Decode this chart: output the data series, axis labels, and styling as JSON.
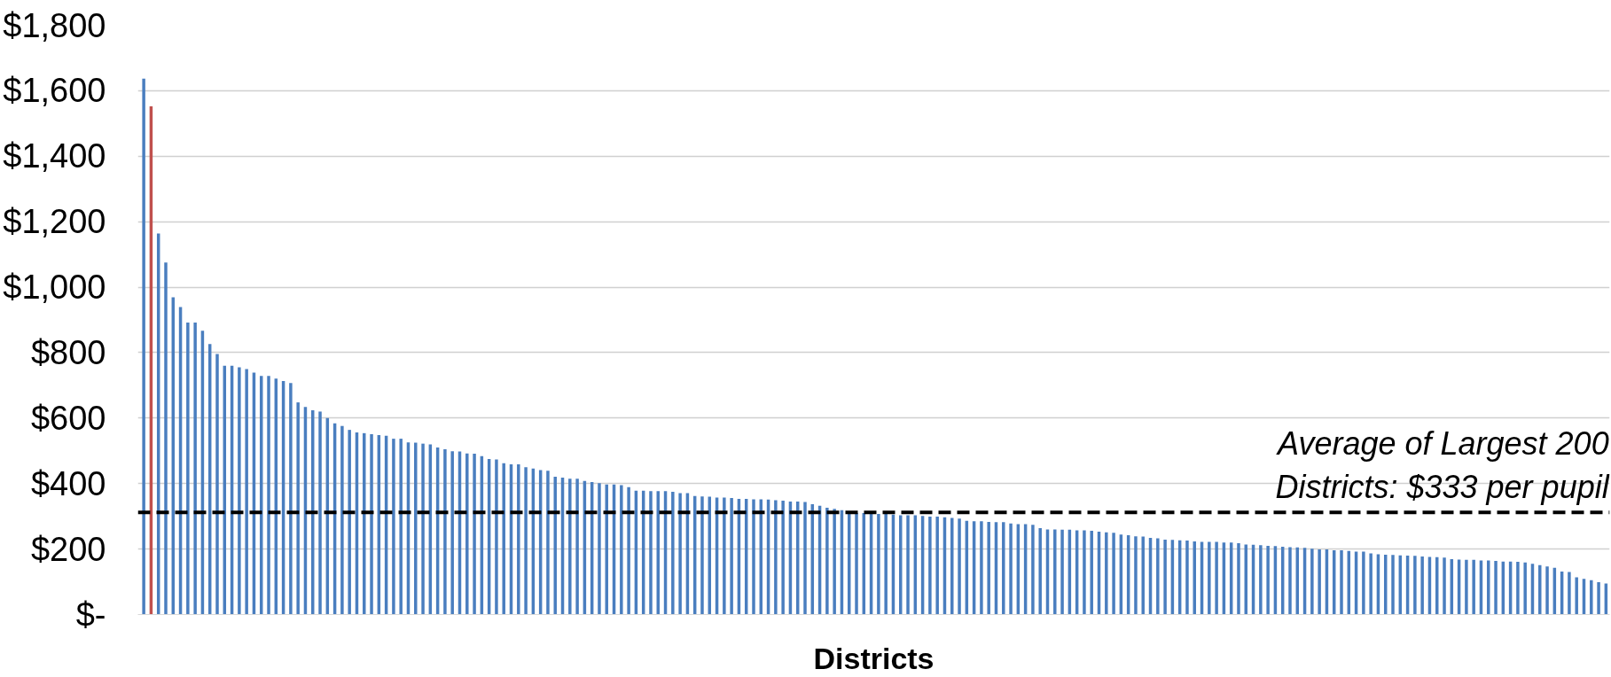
{
  "chart_data": {
    "type": "bar",
    "xlabel": "Districts",
    "categories": [
      null,
      null,
      null,
      null,
      null,
      null,
      null,
      null,
      null,
      null,
      null,
      null,
      null,
      null,
      null,
      null,
      null,
      null,
      null,
      null,
      null,
      null,
      null,
      null,
      null,
      null,
      null,
      null,
      null,
      null,
      null,
      null,
      null,
      null,
      null,
      null,
      null,
      null,
      null,
      null,
      null,
      null,
      null,
      null,
      null,
      null,
      null,
      null,
      null,
      null,
      null,
      null,
      null,
      null,
      null,
      null,
      null,
      null,
      null,
      null,
      null,
      null,
      null,
      null,
      null,
      null,
      null,
      null,
      null,
      null,
      null,
      null,
      null,
      null,
      null,
      null,
      null,
      null,
      null,
      null,
      null,
      null,
      null,
      null,
      null,
      null,
      null,
      null,
      null,
      null,
      null,
      null,
      null,
      null,
      null,
      null,
      null,
      null,
      null,
      null,
      null,
      null,
      null,
      null,
      null,
      null,
      null,
      null,
      null,
      null,
      null,
      null,
      null,
      null,
      null,
      null,
      null,
      null,
      null,
      null,
      null,
      null,
      null,
      null,
      null,
      null,
      null,
      null,
      null,
      null,
      null,
      null,
      null,
      null,
      null,
      null,
      null,
      null,
      null,
      null,
      null,
      null,
      null,
      null,
      null,
      null,
      null,
      null,
      null,
      null,
      null,
      null,
      null,
      null,
      null,
      null,
      null,
      null,
      null,
      null,
      null,
      null,
      null,
      null,
      null,
      null,
      null,
      null,
      null,
      null,
      null,
      null,
      null,
      null,
      null,
      null,
      null,
      null,
      null,
      null,
      null,
      null,
      null,
      null,
      null,
      null,
      null,
      null,
      null,
      null,
      null,
      null,
      null,
      null,
      null,
      null,
      null,
      null,
      null,
      null
    ],
    "values": [
      1637,
      1552,
      1164,
      1075,
      969,
      939,
      892,
      892,
      867,
      826,
      796,
      760,
      760,
      755,
      750,
      739,
      729,
      729,
      721,
      713,
      707,
      648,
      634,
      624,
      620,
      600,
      584,
      576,
      564,
      556,
      554,
      551,
      548,
      546,
      537,
      537,
      526,
      525,
      522,
      520,
      510,
      505,
      499,
      498,
      492,
      491,
      484,
      475,
      474,
      462,
      459,
      459,
      450,
      446,
      441,
      439,
      421,
      418,
      415,
      415,
      408,
      405,
      401,
      397,
      397,
      395,
      389,
      378,
      378,
      377,
      377,
      377,
      375,
      371,
      371,
      362,
      361,
      360,
      357,
      357,
      356,
      353,
      353,
      352,
      352,
      351,
      349,
      348,
      345,
      345,
      344,
      337,
      332,
      326,
      323,
      319,
      313,
      310,
      310,
      307,
      307,
      307,
      305,
      303,
      303,
      303,
      301,
      299,
      299,
      297,
      295,
      293,
      286,
      285,
      285,
      283,
      282,
      282,
      278,
      276,
      276,
      274,
      264,
      260,
      260,
      259,
      259,
      257,
      257,
      256,
      253,
      251,
      250,
      244,
      242,
      239,
      238,
      234,
      233,
      229,
      228,
      227,
      226,
      223,
      222,
      222,
      222,
      220,
      220,
      218,
      214,
      213,
      212,
      210,
      209,
      207,
      206,
      205,
      204,
      201,
      199,
      199,
      196,
      196,
      194,
      192,
      192,
      187,
      184,
      183,
      182,
      181,
      180,
      179,
      177,
      176,
      175,
      174,
      169,
      168,
      167,
      167,
      165,
      165,
      164,
      162,
      162,
      161,
      159,
      155,
      151,
      147,
      143,
      131,
      130,
      114,
      109,
      105,
      99,
      95
    ],
    "colors": [
      "#4a7ebf",
      "#c0504d",
      "#4a7ebf",
      "#4a7ebf",
      "#4a7ebf",
      "#4a7ebf",
      "#4a7ebf",
      "#4a7ebf",
      "#4a7ebf",
      "#4a7ebf",
      "#4a7ebf",
      "#4a7ebf",
      "#4a7ebf",
      "#4a7ebf",
      "#4a7ebf",
      "#4a7ebf",
      "#4a7ebf",
      "#4a7ebf",
      "#4a7ebf",
      "#4a7ebf",
      "#4a7ebf",
      "#4a7ebf",
      "#4a7ebf",
      "#4a7ebf",
      "#4a7ebf",
      "#4a7ebf",
      "#4a7ebf",
      "#4a7ebf",
      "#4a7ebf",
      "#4a7ebf",
      "#4a7ebf",
      "#4a7ebf",
      "#4a7ebf",
      "#4a7ebf",
      "#4a7ebf",
      "#4a7ebf",
      "#4a7ebf",
      "#4a7ebf",
      "#4a7ebf",
      "#4a7ebf",
      "#4a7ebf",
      "#4a7ebf",
      "#4a7ebf",
      "#4a7ebf",
      "#4a7ebf",
      "#4a7ebf",
      "#4a7ebf",
      "#4a7ebf",
      "#4a7ebf",
      "#4a7ebf",
      "#4a7ebf",
      "#4a7ebf",
      "#4a7ebf",
      "#4a7ebf",
      "#4a7ebf",
      "#4a7ebf",
      "#4a7ebf",
      "#4a7ebf",
      "#4a7ebf",
      "#4a7ebf",
      "#4a7ebf",
      "#4a7ebf",
      "#4a7ebf",
      "#4a7ebf",
      "#4a7ebf",
      "#4a7ebf",
      "#4a7ebf",
      "#4a7ebf",
      "#4a7ebf",
      "#4a7ebf",
      "#4a7ebf",
      "#4a7ebf",
      "#4a7ebf",
      "#4a7ebf",
      "#4a7ebf",
      "#4a7ebf",
      "#4a7ebf",
      "#4a7ebf",
      "#4a7ebf",
      "#4a7ebf",
      "#4a7ebf",
      "#4a7ebf",
      "#4a7ebf",
      "#4a7ebf",
      "#4a7ebf",
      "#4a7ebf",
      "#4a7ebf",
      "#4a7ebf",
      "#4a7ebf",
      "#4a7ebf",
      "#4a7ebf",
      "#4a7ebf",
      "#4a7ebf",
      "#4a7ebf",
      "#4a7ebf",
      "#4a7ebf",
      "#4a7ebf",
      "#4a7ebf",
      "#4a7ebf",
      "#4a7ebf",
      "#4a7ebf",
      "#4a7ebf",
      "#4a7ebf",
      "#4a7ebf",
      "#4a7ebf",
      "#4a7ebf",
      "#4a7ebf",
      "#4a7ebf",
      "#4a7ebf",
      "#4a7ebf",
      "#4a7ebf",
      "#4a7ebf",
      "#4a7ebf",
      "#4a7ebf",
      "#4a7ebf",
      "#4a7ebf",
      "#4a7ebf",
      "#4a7ebf",
      "#4a7ebf",
      "#4a7ebf",
      "#4a7ebf",
      "#4a7ebf",
      "#4a7ebf",
      "#4a7ebf",
      "#4a7ebf",
      "#4a7ebf",
      "#4a7ebf",
      "#4a7ebf",
      "#4a7ebf",
      "#4a7ebf",
      "#4a7ebf",
      "#4a7ebf",
      "#4a7ebf",
      "#4a7ebf",
      "#4a7ebf",
      "#4a7ebf",
      "#4a7ebf",
      "#4a7ebf",
      "#4a7ebf",
      "#4a7ebf",
      "#4a7ebf",
      "#4a7ebf",
      "#4a7ebf",
      "#4a7ebf",
      "#4a7ebf",
      "#4a7ebf",
      "#4a7ebf",
      "#4a7ebf",
      "#4a7ebf",
      "#4a7ebf",
      "#4a7ebf",
      "#4a7ebf",
      "#4a7ebf",
      "#4a7ebf",
      "#4a7ebf",
      "#4a7ebf",
      "#4a7ebf",
      "#4a7ebf",
      "#4a7ebf",
      "#4a7ebf",
      "#4a7ebf",
      "#4a7ebf",
      "#4a7ebf",
      "#4a7ebf",
      "#4a7ebf",
      "#4a7ebf",
      "#4a7ebf",
      "#4a7ebf",
      "#4a7ebf",
      "#4a7ebf",
      "#4a7ebf",
      "#4a7ebf",
      "#4a7ebf",
      "#4a7ebf",
      "#4a7ebf",
      "#4a7ebf",
      "#4a7ebf",
      "#4a7ebf",
      "#4a7ebf",
      "#4a7ebf",
      "#4a7ebf",
      "#4a7ebf",
      "#4a7ebf",
      "#4a7ebf",
      "#4a7ebf",
      "#4a7ebf",
      "#4a7ebf",
      "#4a7ebf",
      "#4a7ebf",
      "#4a7ebf",
      "#4a7ebf",
      "#4a7ebf",
      "#4a7ebf",
      "#4a7ebf",
      "#4a7ebf",
      "#4a7ebf",
      "#4a7ebf",
      "#4a7ebf",
      "#4a7ebf",
      "#4a7ebf"
    ],
    "ylim": [
      0,
      1800
    ],
    "yticks": [
      {
        "value": 0,
        "label": "$-"
      },
      {
        "value": 200,
        "label": "$200"
      },
      {
        "value": 400,
        "label": "$400"
      },
      {
        "value": 600,
        "label": "$600"
      },
      {
        "value": 800,
        "label": "$800"
      },
      {
        "value": 1000,
        "label": "$1,000"
      },
      {
        "value": 1200,
        "label": "$1,200"
      },
      {
        "value": 1400,
        "label": "$1,400"
      },
      {
        "value": 1600,
        "label": "$1,600"
      },
      {
        "value": 1800,
        "label": "$1,800"
      }
    ],
    "grid": "y",
    "annotations": [
      "Average of Largest 200\nDistricts: $333 per pupil"
    ],
    "ref_lines": [
      {
        "axis": "y",
        "value": 312,
        "color": "#000000",
        "line_style": "dashed"
      }
    ]
  }
}
